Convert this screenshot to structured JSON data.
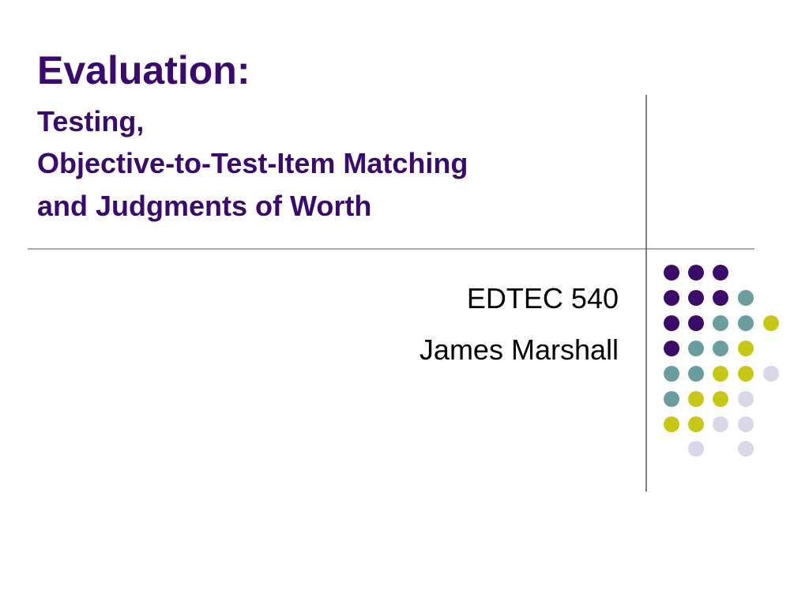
{
  "title": {
    "heading": "Evaluation:",
    "lines": [
      "Testing,",
      "Objective-to-Test-Item Matching",
      "and Judgments of Worth"
    ]
  },
  "subtitle": {
    "lines": [
      "EDTEC 540",
      "James Marshall"
    ]
  }
}
